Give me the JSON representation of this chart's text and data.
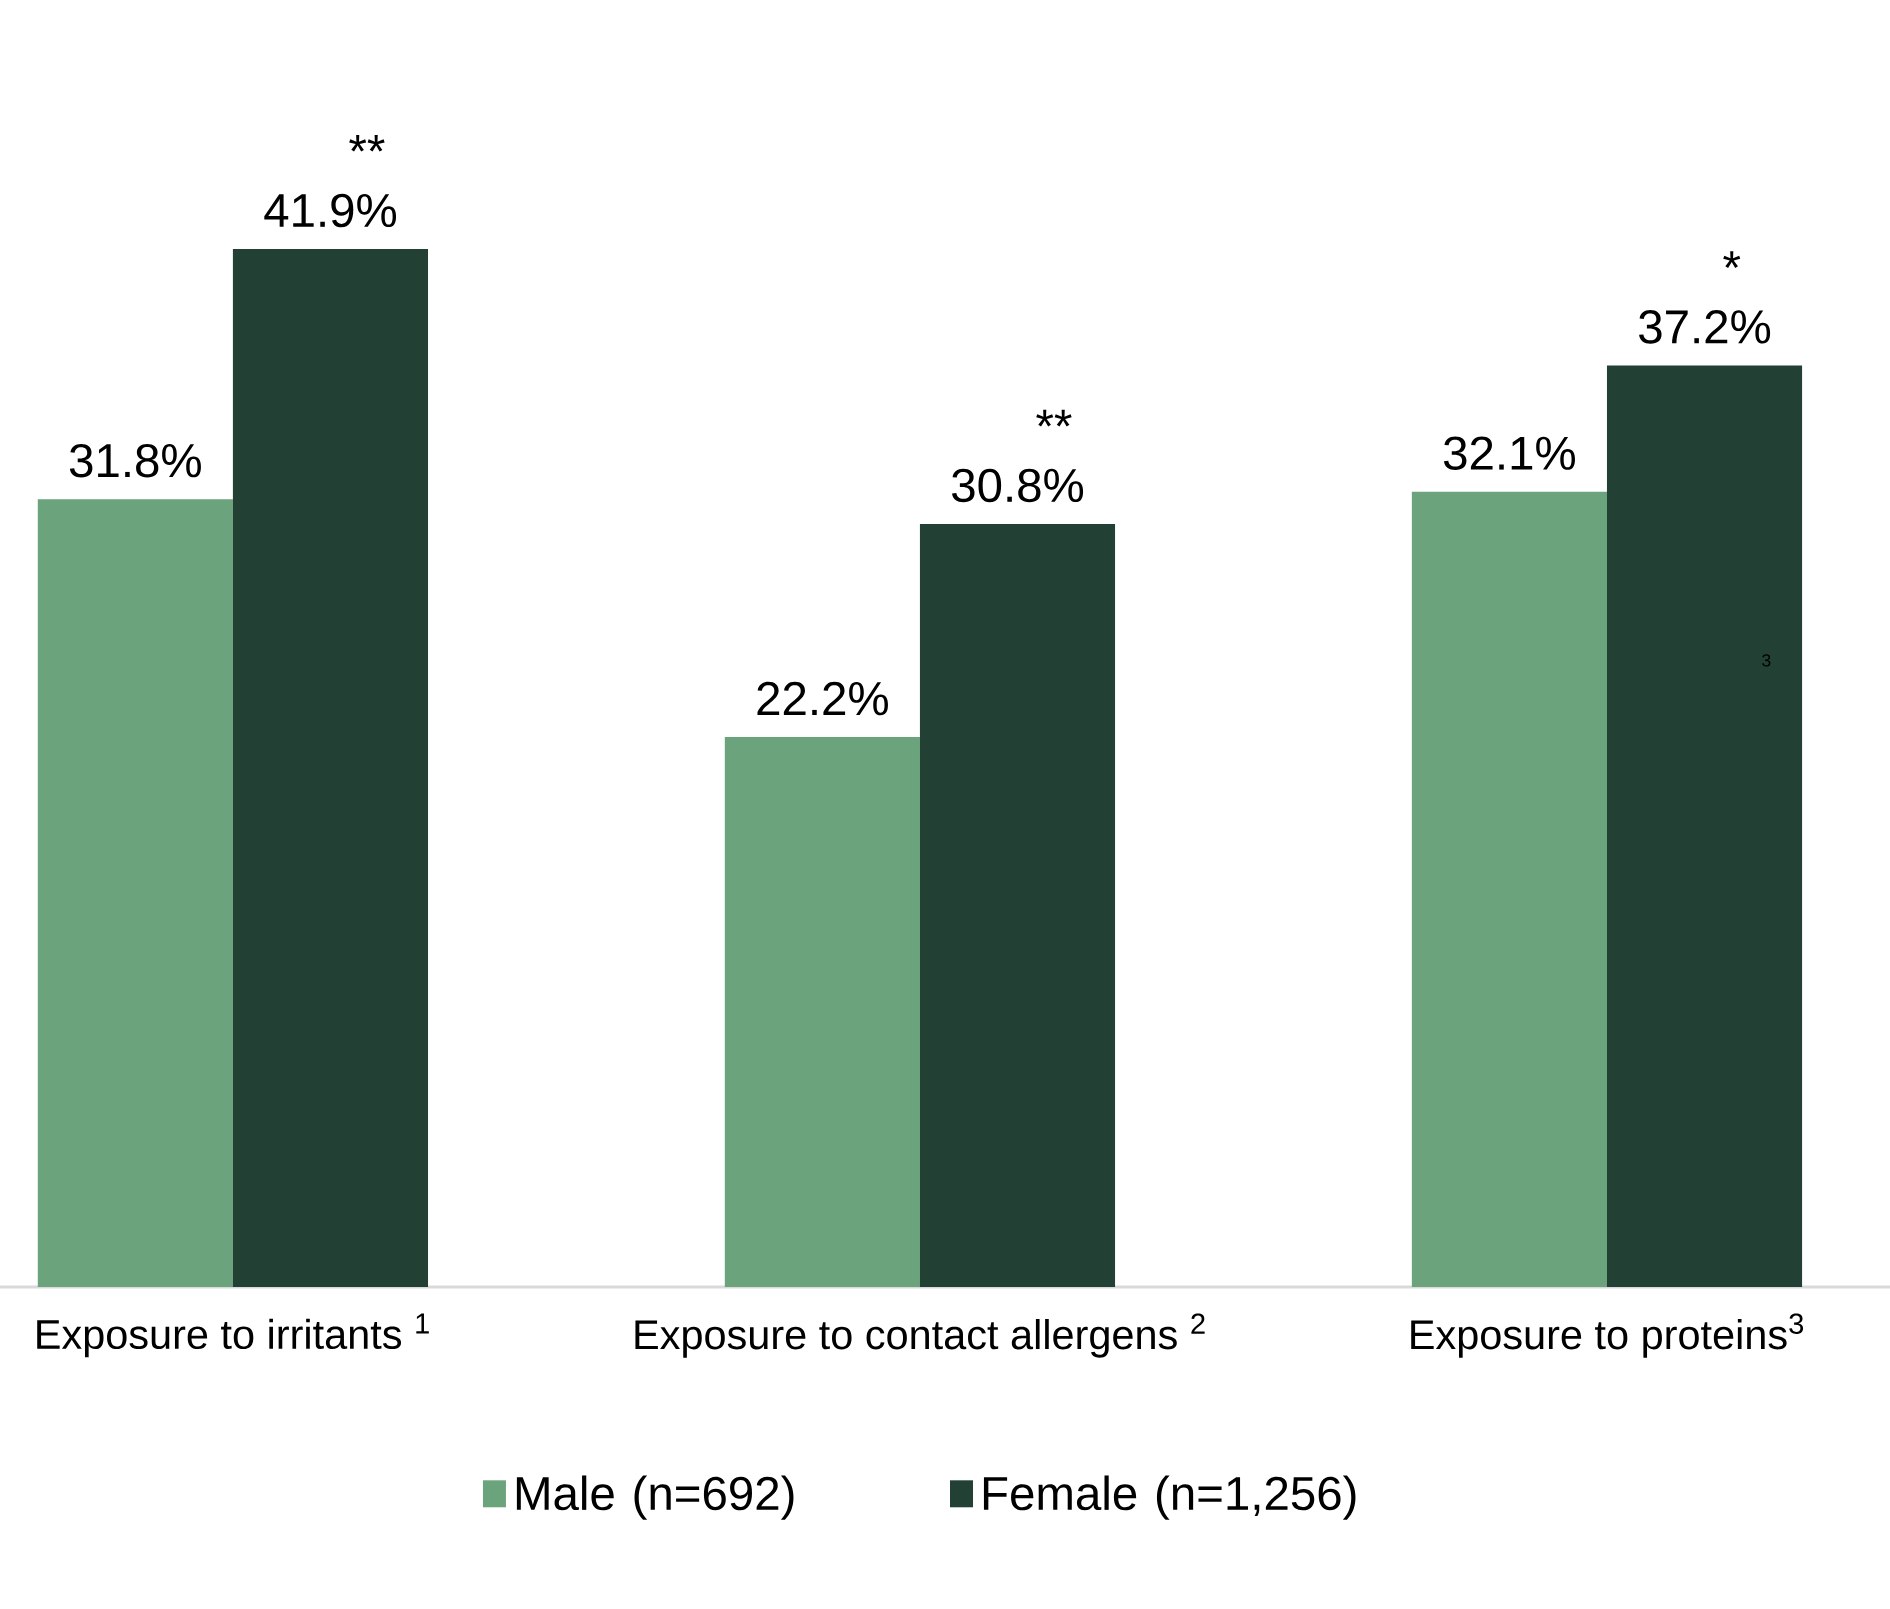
{
  "chart_data": {
    "type": "bar",
    "categories": [
      "Exposure to irritants $^{1}$",
      "Exposure to contact allergens $^{2}$",
      "Exposure to proteins$^{3}$"
    ],
    "series": [
      {
        "name": "Male (n=692)",
        "color": "#6aa37c",
        "values": [
          31.8,
          22.2,
          32.1
        ],
        "value_labels": [
          "31.8%",
          "22.2%",
          "32.1%"
        ]
      },
      {
        "name": "Female (n=1,256)",
        "color": "#224033",
        "values": [
          41.9,
          30.8,
          37.2
        ],
        "value_labels": [
          "41.9%",
          "30.8%",
          "37.2%"
        ]
      }
    ],
    "annotations": [
      "**",
      "**",
      "*",
      "3"
    ],
    "legend": "bottom"
  }
}
